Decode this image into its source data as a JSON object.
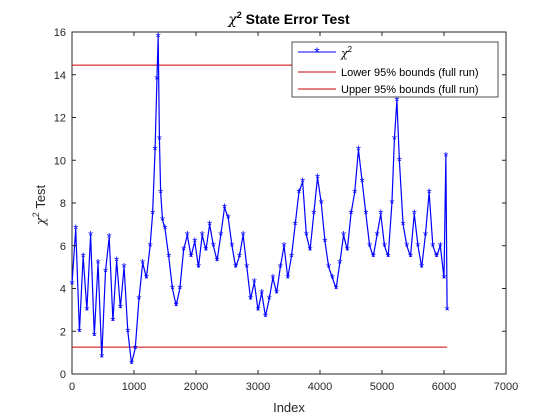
{
  "chart_data": {
    "type": "line",
    "title": {
      "symbol": "χ",
      "sup": "2",
      "rest": " State Error Test"
    },
    "xlabel": "Index",
    "ylabel": {
      "symbol": "χ",
      "sup": "2",
      "rest": " Test"
    },
    "xlim": [
      0,
      7000
    ],
    "ylim": [
      0,
      16
    ],
    "xticks": [
      0,
      1000,
      2000,
      3000,
      4000,
      5000,
      6000,
      7000
    ],
    "yticks": [
      0,
      2,
      4,
      6,
      8,
      10,
      12,
      14,
      16
    ],
    "grid": false,
    "legend_position": "top-right",
    "colors": {
      "series": "#0000ff",
      "bounds": "#cc0000",
      "axis": "#262626"
    },
    "series": [
      {
        "name": "χ2",
        "legend_symbol": "χ",
        "legend_sup": "2",
        "marker": "asterisk",
        "x": [
          0,
          60,
          120,
          180,
          240,
          300,
          360,
          420,
          480,
          540,
          600,
          660,
          720,
          780,
          840,
          900,
          960,
          1020,
          1080,
          1140,
          1200,
          1260,
          1300,
          1340,
          1370,
          1390,
          1410,
          1430,
          1460,
          1500,
          1560,
          1620,
          1680,
          1740,
          1800,
          1860,
          1920,
          1980,
          2040,
          2100,
          2160,
          2220,
          2280,
          2340,
          2400,
          2460,
          2520,
          2580,
          2640,
          2700,
          2760,
          2820,
          2880,
          2940,
          3000,
          3060,
          3120,
          3180,
          3240,
          3300,
          3360,
          3420,
          3480,
          3540,
          3600,
          3660,
          3720,
          3780,
          3840,
          3900,
          3960,
          4020,
          4080,
          4140,
          4200,
          4260,
          4320,
          4380,
          4440,
          4500,
          4560,
          4620,
          4680,
          4740,
          4800,
          4860,
          4920,
          4980,
          5040,
          5100,
          5160,
          5200,
          5240,
          5280,
          5340,
          5400,
          5460,
          5520,
          5580,
          5640,
          5700,
          5760,
          5820,
          5880,
          5940,
          6000,
          6030,
          6050
        ],
        "values": [
          4.2,
          6.8,
          2.0,
          5.5,
          3.0,
          6.5,
          1.8,
          5.2,
          0.8,
          4.8,
          6.4,
          2.5,
          5.3,
          3.1,
          5.0,
          2.0,
          0.5,
          1.2,
          3.5,
          5.2,
          4.5,
          6.0,
          7.5,
          10.5,
          13.8,
          15.8,
          11.0,
          8.5,
          7.2,
          6.8,
          5.5,
          4.0,
          3.2,
          4.0,
          5.8,
          6.5,
          5.5,
          6.2,
          5.0,
          6.5,
          5.8,
          7.0,
          6.0,
          5.3,
          6.5,
          7.8,
          7.3,
          6.0,
          5.0,
          5.5,
          6.5,
          5.0,
          3.5,
          4.3,
          3.0,
          3.8,
          2.7,
          3.5,
          4.5,
          3.8,
          5.0,
          6.0,
          4.5,
          5.5,
          7.0,
          8.5,
          9.0,
          6.5,
          5.8,
          7.5,
          9.2,
          8.0,
          6.2,
          5.0,
          4.5,
          4.0,
          5.2,
          6.5,
          5.8,
          7.5,
          8.5,
          10.5,
          9.0,
          7.5,
          6.0,
          5.5,
          6.5,
          7.5,
          6.0,
          5.5,
          8.0,
          11.0,
          12.8,
          10.0,
          7.0,
          6.0,
          5.5,
          7.5,
          6.0,
          5.0,
          6.5,
          8.5,
          6.0,
          5.5,
          6.0,
          4.5,
          10.2,
          3.0
        ]
      },
      {
        "name": "Lower 95% bounds (full run)",
        "legend_label": "Lower 95% bounds (full run)",
        "x": [
          0,
          6050
        ],
        "values": [
          1.26,
          1.26
        ]
      },
      {
        "name": "Upper 95% bounds (full run)",
        "legend_label": "Upper 95% bounds (full run)",
        "x": [
          0,
          6050
        ],
        "values": [
          14.45,
          14.45
        ]
      }
    ]
  }
}
